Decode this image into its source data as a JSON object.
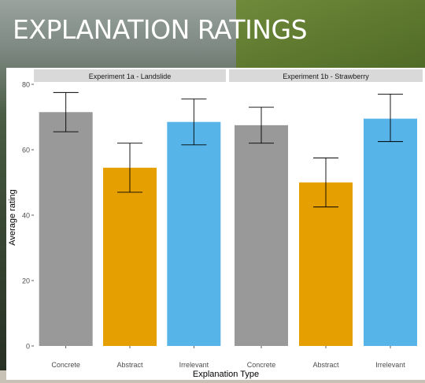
{
  "slide": {
    "title": "EXPLANATION RATINGS"
  },
  "chart_data": {
    "type": "bar",
    "xlabel": "Explanation Type",
    "ylabel": "Average rating",
    "ylim": [
      0,
      80
    ],
    "yticks": [
      0,
      20,
      40,
      60,
      80
    ],
    "grid": false,
    "categories": [
      "Concrete",
      "Abstract",
      "Irrelevant"
    ],
    "colors": {
      "Concrete": "#999999",
      "Abstract": "#e69f00",
      "Irrelevant": "#56b4e9"
    },
    "panels": [
      {
        "label": "Experiment 1a - Landslide",
        "values": [
          71.5,
          54.5,
          68.5
        ],
        "error_low": [
          65.5,
          47.0,
          61.5
        ],
        "error_high": [
          77.5,
          62.0,
          75.5
        ]
      },
      {
        "label": "Experiment 1b - Strawberry",
        "values": [
          67.5,
          50.0,
          69.5
        ],
        "error_low": [
          62.0,
          42.5,
          62.5
        ],
        "error_high": [
          73.0,
          57.5,
          77.0
        ]
      }
    ]
  }
}
